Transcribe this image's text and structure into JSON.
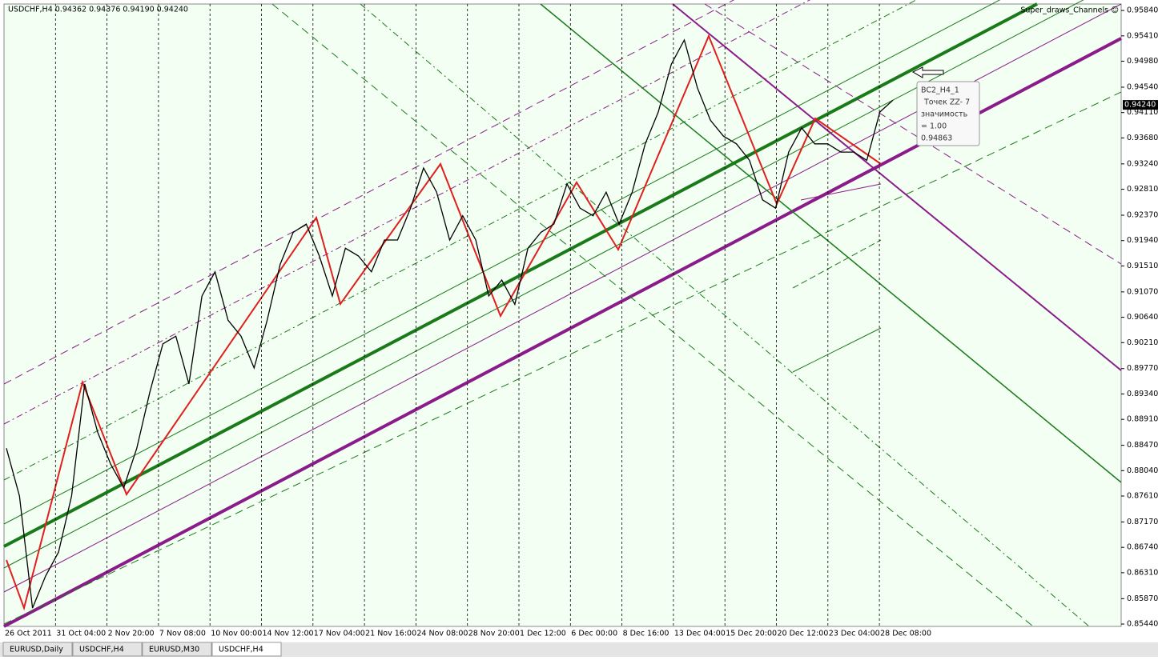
{
  "chart_data": {
    "type": "line",
    "title": "USDCHF,H4 0.94362 0.94376 0.94190 0.94240",
    "indicator": "Super_draws_Channels ☺",
    "x_labels": [
      "26 Oct 2011",
      "31 Oct 04:00",
      "2 Nov 20:00",
      "7 Nov 08:00",
      "10 Nov 00:00",
      "14 Nov 12:00",
      "17 Nov 04:00",
      "21 Nov 16:00",
      "24 Nov 08:00",
      "28 Nov 20:00",
      "1 Dec 12:00",
      "6 Dec 00:00",
      "8 Dec 16:00",
      "13 Dec 04:00",
      "15 Dec 20:00",
      "20 Dec 12:00",
      "23 Dec 04:00",
      "28 Dec 08:00"
    ],
    "series": [
      {
        "name": "USDCHF,H4",
        "color": "#000000",
        "values": [
          0.8842,
          0.8761,
          0.8571,
          0.8625,
          0.8666,
          0.8761,
          0.8951,
          0.8869,
          0.8815,
          0.8775,
          0.8842,
          0.8937,
          0.9019,
          0.9032,
          0.8951,
          0.91,
          0.9141,
          0.9059,
          0.9032,
          0.8978,
          0.9059,
          0.9154,
          0.9208,
          0.9222,
          0.9168,
          0.91,
          0.9181,
          0.9168,
          0.9141,
          0.9195,
          0.9195,
          0.9249,
          0.9317,
          0.9276,
          0.9195,
          0.9236,
          0.9195,
          0.91,
          0.9127,
          0.9086,
          0.9181,
          0.9208,
          0.9222,
          0.929,
          0.9249,
          0.9236,
          0.9276,
          0.9222,
          0.9276,
          0.9358,
          0.9412,
          0.9493,
          0.9534,
          0.9453,
          0.9398,
          0.9371,
          0.9358,
          0.933,
          0.9263,
          0.9249,
          0.9344,
          0.9385,
          0.9358,
          0.9358,
          0.9344,
          0.9344,
          0.933,
          0.9412,
          0.9432
        ]
      }
    ],
    "current_price": {
      "value": 0.9424,
      "label": "0.94240"
    },
    "ylim": [
      0.854,
      0.9595
    ],
    "yticks": [
      {
        "value": 0.9584,
        "label": "0.95840"
      },
      {
        "value": 0.9541,
        "label": "0.95410"
      },
      {
        "value": 0.9498,
        "label": "0.94980"
      },
      {
        "value": 0.9454,
        "label": "0.94540"
      },
      {
        "value": 0.9411,
        "label": "0.94110"
      },
      {
        "value": 0.9368,
        "label": "0.93680"
      },
      {
        "value": 0.9324,
        "label": "0.93240"
      },
      {
        "value": 0.9281,
        "label": "0.92810"
      },
      {
        "value": 0.9237,
        "label": "0.92370"
      },
      {
        "value": 0.9194,
        "label": "0.91940"
      },
      {
        "value": 0.9151,
        "label": "0.91510"
      },
      {
        "value": 0.9107,
        "label": "0.91070"
      },
      {
        "value": 0.9064,
        "label": "0.90640"
      },
      {
        "value": 0.9021,
        "label": "0.90210"
      },
      {
        "value": 0.8977,
        "label": "0.89770"
      },
      {
        "value": 0.8934,
        "label": "0.89340"
      },
      {
        "value": 0.8891,
        "label": "0.88910"
      },
      {
        "value": 0.8847,
        "label": "0.88470"
      },
      {
        "value": 0.8804,
        "label": "0.88040"
      },
      {
        "value": 0.8761,
        "label": "0.87610"
      },
      {
        "value": 0.8717,
        "label": "0.87170"
      },
      {
        "value": 0.8674,
        "label": "0.86740"
      },
      {
        "value": 0.8631,
        "label": "0.86310"
      },
      {
        "value": 0.8587,
        "label": "0.85870"
      },
      {
        "value": 0.8544,
        "label": "0.85440"
      }
    ]
  },
  "tooltip": {
    "lines": [
      "BC2_H4_1",
      "Точек ZZ- 7",
      "значимость",
      "= 1.00",
      "0.94863"
    ]
  },
  "tabs": [
    "EURUSD,Daily",
    "USDCHF,H4",
    "EURUSD,M30",
    "USDCHF,H4"
  ]
}
